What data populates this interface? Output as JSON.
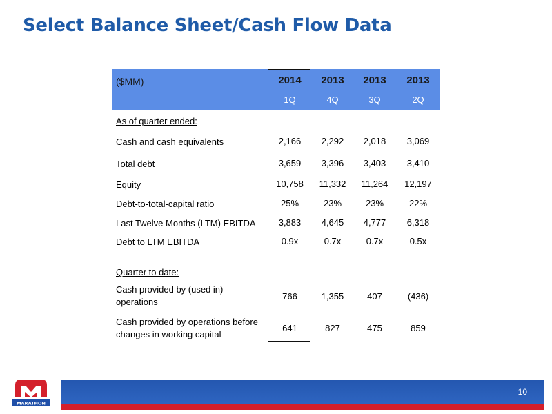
{
  "title": "Select Balance Sheet/Cash Flow Data",
  "table": {
    "unit_label": "($MM)",
    "columns": [
      {
        "year": "2014",
        "quarter": "1Q"
      },
      {
        "year": "2013",
        "quarter": "4Q"
      },
      {
        "year": "2013",
        "quarter": "3Q"
      },
      {
        "year": "2013",
        "quarter": "2Q"
      }
    ],
    "sections": [
      {
        "heading": "As of quarter ended:",
        "rows": [
          {
            "label": "Cash and cash equivalents",
            "values": [
              "2,166",
              "2,292",
              "2,018",
              "3,069"
            ]
          },
          {
            "label": "Total debt",
            "values": [
              "3,659",
              "3,396",
              "3,403",
              "3,410"
            ]
          },
          {
            "label": "Equity",
            "values": [
              "10,758",
              "11,332",
              "11,264",
              "12,197"
            ]
          },
          {
            "label": "Debt-to-total-capital ratio",
            "values": [
              "25%",
              "23%",
              "23%",
              "22%"
            ]
          },
          {
            "label": "Last Twelve Months (LTM) EBITDA",
            "values": [
              "3,883",
              "4,645",
              "4,777",
              "6,318"
            ]
          },
          {
            "label": "Debt to LTM EBITDA",
            "values": [
              "0.9x",
              "0.7x",
              "0.7x",
              "0.5x"
            ]
          }
        ]
      },
      {
        "heading": "Quarter to date:",
        "rows": [
          {
            "label": "Cash provided by (used in) operations",
            "values": [
              "766",
              "1,355",
              "407",
              "(436)"
            ]
          },
          {
            "label": "Cash provided by operations before changes in working capital",
            "values": [
              "641",
              "827",
              "475",
              "859"
            ]
          }
        ]
      }
    ]
  },
  "footer": {
    "page_number": "10",
    "logo_text": "MARATHON"
  },
  "colors": {
    "title": "#1f5ba8",
    "header": "#5b8de6",
    "footer_blue": "#2457b0",
    "footer_red": "#d4202b"
  }
}
